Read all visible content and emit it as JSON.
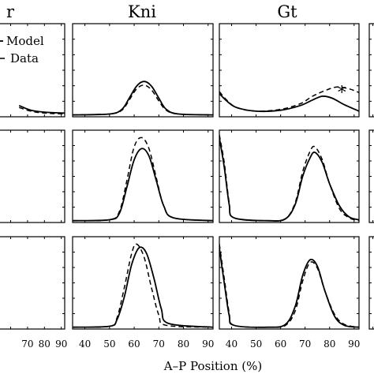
{
  "chart_data": {
    "type": "line",
    "xlabel": "A–P Position (%)",
    "panel_titles": [
      "",
      "Kni",
      "Gt",
      ""
    ],
    "partial_title_glyph": "r",
    "legend": [
      "Model",
      "Data"
    ],
    "star_annotation": "*",
    "xticks_left": [
      "70",
      "80",
      "90"
    ],
    "xticks_mid": [
      "40",
      "50",
      "60",
      "70",
      "80",
      "90"
    ],
    "xticks_right": [
      "40",
      "50",
      "60",
      "70",
      "80",
      "90"
    ],
    "x_range": [
      35,
      92
    ],
    "y_range": [
      0,
      1
    ],
    "series_names": [
      "Model",
      "Data"
    ],
    "panels": [
      {
        "row": 1,
        "col": 1,
        "gene": "",
        "model": [
          [
            65,
            0.12
          ],
          [
            72,
            0.07
          ],
          [
            80,
            0.05
          ],
          [
            92,
            0.04
          ]
        ],
        "data": [
          [
            65,
            0.1
          ],
          [
            72,
            0.06
          ],
          [
            80,
            0.04
          ],
          [
            92,
            0.03
          ]
        ]
      },
      {
        "row": 1,
        "col": 2,
        "gene": "Kni",
        "model": [
          [
            35,
            0.02
          ],
          [
            50,
            0.03
          ],
          [
            55,
            0.08
          ],
          [
            58,
            0.2
          ],
          [
            61,
            0.33
          ],
          [
            64,
            0.38
          ],
          [
            67,
            0.33
          ],
          [
            70,
            0.2
          ],
          [
            73,
            0.08
          ],
          [
            78,
            0.03
          ],
          [
            92,
            0.02
          ]
        ],
        "data": [
          [
            35,
            0.02
          ],
          [
            50,
            0.03
          ],
          [
            55,
            0.07
          ],
          [
            58,
            0.18
          ],
          [
            61,
            0.3
          ],
          [
            64,
            0.34
          ],
          [
            67,
            0.29
          ],
          [
            70,
            0.17
          ],
          [
            73,
            0.07
          ],
          [
            78,
            0.03
          ],
          [
            92,
            0.02
          ]
        ]
      },
      {
        "row": 1,
        "col": 3,
        "gene": "Gt",
        "model": [
          [
            35,
            0.25
          ],
          [
            38,
            0.17
          ],
          [
            42,
            0.1
          ],
          [
            50,
            0.06
          ],
          [
            60,
            0.07
          ],
          [
            68,
            0.12
          ],
          [
            73,
            0.18
          ],
          [
            77,
            0.22
          ],
          [
            81,
            0.2
          ],
          [
            86,
            0.13
          ],
          [
            92,
            0.06
          ]
        ],
        "data": [
          [
            35,
            0.27
          ],
          [
            38,
            0.18
          ],
          [
            42,
            0.1
          ],
          [
            50,
            0.06
          ],
          [
            60,
            0.08
          ],
          [
            68,
            0.14
          ],
          [
            73,
            0.22
          ],
          [
            78,
            0.28
          ],
          [
            83,
            0.32
          ],
          [
            88,
            0.3
          ],
          [
            92,
            0.26
          ]
        ]
      },
      {
        "row": 2,
        "col": 2,
        "gene": "Kni",
        "model": [
          [
            35,
            0.02
          ],
          [
            50,
            0.03
          ],
          [
            54,
            0.1
          ],
          [
            57,
            0.38
          ],
          [
            60,
            0.68
          ],
          [
            63,
            0.8
          ],
          [
            66,
            0.72
          ],
          [
            69,
            0.45
          ],
          [
            72,
            0.18
          ],
          [
            76,
            0.05
          ],
          [
            92,
            0.02
          ]
        ],
        "data": [
          [
            35,
            0.02
          ],
          [
            50,
            0.03
          ],
          [
            54,
            0.12
          ],
          [
            57,
            0.45
          ],
          [
            60,
            0.82
          ],
          [
            63,
            0.92
          ],
          [
            66,
            0.8
          ],
          [
            69,
            0.48
          ],
          [
            72,
            0.18
          ],
          [
            76,
            0.05
          ],
          [
            92,
            0.02
          ]
        ]
      },
      {
        "row": 2,
        "col": 3,
        "gene": "Gt",
        "model": [
          [
            35,
            0.92
          ],
          [
            37,
            0.6
          ],
          [
            39,
            0.2
          ],
          [
            41,
            0.05
          ],
          [
            55,
            0.02
          ],
          [
            62,
            0.04
          ],
          [
            66,
            0.2
          ],
          [
            69,
            0.5
          ],
          [
            72,
            0.7
          ],
          [
            74,
            0.76
          ],
          [
            77,
            0.65
          ],
          [
            80,
            0.42
          ],
          [
            84,
            0.18
          ],
          [
            88,
            0.06
          ],
          [
            92,
            0.03
          ]
        ],
        "data": [
          [
            35,
            0.95
          ],
          [
            37,
            0.65
          ],
          [
            39,
            0.22
          ],
          [
            41,
            0.05
          ],
          [
            55,
            0.02
          ],
          [
            62,
            0.04
          ],
          [
            66,
            0.22
          ],
          [
            69,
            0.55
          ],
          [
            72,
            0.77
          ],
          [
            74,
            0.82
          ],
          [
            77,
            0.68
          ],
          [
            80,
            0.42
          ],
          [
            84,
            0.15
          ],
          [
            88,
            0.05
          ],
          [
            92,
            0.02
          ]
        ]
      },
      {
        "row": 3,
        "col": 2,
        "gene": "Kni",
        "model": [
          [
            35,
            0.02
          ],
          [
            50,
            0.03
          ],
          [
            53,
            0.1
          ],
          [
            56,
            0.35
          ],
          [
            59,
            0.7
          ],
          [
            62,
            0.88
          ],
          [
            65,
            0.82
          ],
          [
            68,
            0.55
          ],
          [
            71,
            0.22
          ],
          [
            74,
            0.06
          ],
          [
            92,
            0.02
          ]
        ],
        "data": [
          [
            35,
            0.02
          ],
          [
            50,
            0.03
          ],
          [
            53,
            0.12
          ],
          [
            56,
            0.45
          ],
          [
            59,
            0.82
          ],
          [
            61,
            0.92
          ],
          [
            64,
            0.78
          ],
          [
            67,
            0.45
          ],
          [
            70,
            0.15
          ],
          [
            73,
            0.04
          ],
          [
            92,
            0.02
          ]
        ]
      },
      {
        "row": 3,
        "col": 3,
        "gene": "Gt",
        "model": [
          [
            35,
            0.88
          ],
          [
            37,
            0.5
          ],
          [
            39,
            0.15
          ],
          [
            41,
            0.04
          ],
          [
            55,
            0.02
          ],
          [
            62,
            0.05
          ],
          [
            66,
            0.25
          ],
          [
            69,
            0.58
          ],
          [
            72,
            0.75
          ],
          [
            75,
            0.68
          ],
          [
            78,
            0.42
          ],
          [
            82,
            0.14
          ],
          [
            86,
            0.04
          ],
          [
            92,
            0.02
          ]
        ],
        "data": [
          [
            35,
            0.92
          ],
          [
            37,
            0.55
          ],
          [
            39,
            0.18
          ],
          [
            41,
            0.04
          ],
          [
            55,
            0.02
          ],
          [
            62,
            0.04
          ],
          [
            66,
            0.2
          ],
          [
            69,
            0.52
          ],
          [
            72,
            0.72
          ],
          [
            75,
            0.66
          ],
          [
            78,
            0.42
          ],
          [
            82,
            0.16
          ],
          [
            86,
            0.05
          ],
          [
            92,
            0.02
          ]
        ]
      }
    ]
  }
}
